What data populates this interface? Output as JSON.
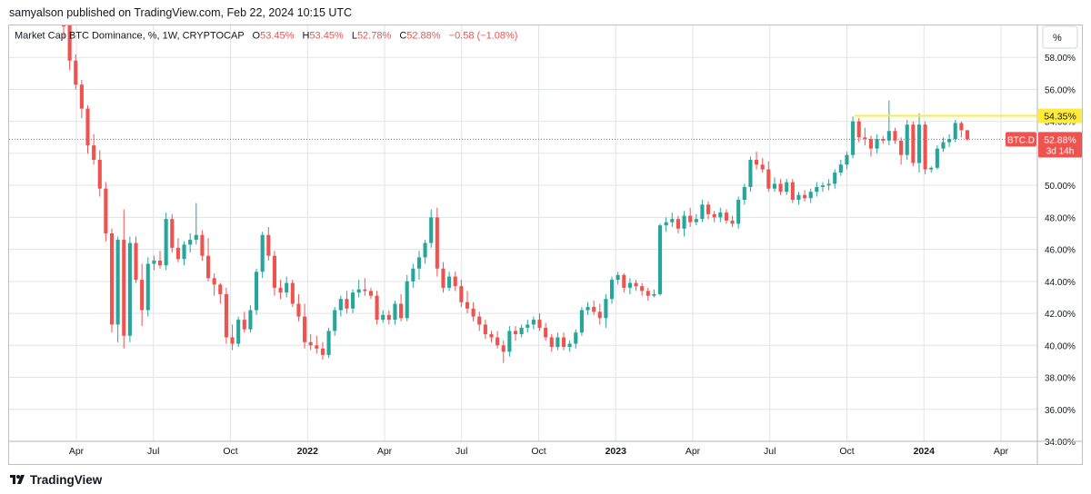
{
  "header": {
    "published": "samyalson published on TradingView.com, Feb 22, 2024 10:15 UTC"
  },
  "legend": {
    "symbol": "Market Cap BTC Dominance, %, 1W, CRYPTOCAP",
    "o_label": "O",
    "o_value": "53.45%",
    "h_label": "H",
    "h_value": "53.45%",
    "l_label": "L",
    "l_value": "52.78%",
    "c_label": "C",
    "c_value": "52.88%",
    "change": "−0.58 (−1.08%)"
  },
  "scale_button": "%",
  "price_tag": {
    "symbol": "BTC.D",
    "value": "52.88%",
    "countdown": "3d 14h"
  },
  "level_tag": "54.35%",
  "footer": {
    "brand": "TradingView"
  },
  "colors": {
    "up": "#26a69a",
    "down": "#ef5350",
    "level": "#ffeb3b",
    "text": "#131722",
    "axis": "#787b86"
  },
  "chart_data": {
    "type": "candlestick",
    "ylim": [
      34,
      60
    ],
    "y_ticks": [
      "58.00%",
      "56.00%",
      "54.00%",
      "52.00%",
      "50.00%",
      "48.00%",
      "46.00%",
      "44.00%",
      "42.00%",
      "40.00%",
      "38.00%",
      "36.00%",
      "34.00%"
    ],
    "x_ticks": [
      "Apr",
      "Jul",
      "Oct",
      "2022",
      "Apr",
      "Jul",
      "Oct",
      "2023",
      "Apr",
      "Jul",
      "Oct",
      "2024",
      "Apr"
    ],
    "x_bold": [
      "2022",
      "2023",
      "2024"
    ],
    "horizontal_level": 54.35,
    "last_price": 52.88,
    "candles": [
      [
        61.5,
        62.0,
        59.2,
        60.2
      ],
      [
        60.2,
        61.0,
        57.2,
        57.8
      ],
      [
        57.8,
        58.2,
        56.0,
        56.3
      ],
      [
        56.3,
        56.6,
        54.2,
        54.8
      ],
      [
        54.8,
        55.0,
        52.0,
        52.5
      ],
      [
        52.5,
        53.2,
        51.3,
        51.6
      ],
      [
        51.6,
        52.2,
        49.3,
        49.8
      ],
      [
        49.8,
        50.2,
        46.5,
        47.0
      ],
      [
        47.0,
        47.3,
        40.8,
        41.3
      ],
      [
        41.3,
        46.8,
        40.2,
        46.6
      ],
      [
        46.6,
        48.5,
        39.8,
        40.6
      ],
      [
        40.6,
        46.8,
        40.2,
        46.4
      ],
      [
        46.4,
        46.8,
        43.9,
        44.1
      ],
      [
        44.1,
        45.1,
        41.2,
        42.2
      ],
      [
        42.2,
        45.5,
        41.8,
        45.1
      ],
      [
        45.1,
        45.6,
        44.7,
        45.3
      ],
      [
        45.3,
        45.9,
        44.8,
        45.0
      ],
      [
        45.0,
        48.3,
        44.7,
        47.9
      ],
      [
        47.9,
        48.2,
        45.8,
        46.1
      ],
      [
        46.1,
        46.7,
        45.2,
        45.4
      ],
      [
        45.4,
        46.5,
        45.0,
        46.3
      ],
      [
        46.3,
        47.0,
        45.8,
        46.6
      ],
      [
        46.6,
        48.9,
        46.3,
        46.9
      ],
      [
        46.9,
        47.2,
        45.3,
        45.6
      ],
      [
        45.6,
        46.7,
        44.0,
        44.2
      ],
      [
        44.2,
        44.5,
        43.1,
        43.8
      ],
      [
        43.8,
        43.9,
        42.6,
        43.2
      ],
      [
        43.2,
        43.6,
        40.1,
        40.5
      ],
      [
        40.5,
        41.3,
        39.7,
        40.1
      ],
      [
        40.1,
        41.8,
        39.9,
        41.6
      ],
      [
        41.6,
        42.1,
        40.8,
        41.0
      ],
      [
        41.0,
        42.5,
        40.8,
        42.2
      ],
      [
        42.2,
        44.8,
        41.9,
        44.6
      ],
      [
        44.6,
        47.1,
        44.2,
        46.9
      ],
      [
        46.9,
        47.4,
        45.3,
        45.6
      ],
      [
        45.6,
        45.9,
        43.1,
        43.6
      ],
      [
        43.6,
        44.1,
        42.9,
        43.3
      ],
      [
        43.3,
        44.3,
        43.0,
        43.9
      ],
      [
        43.9,
        44.1,
        42.4,
        42.6
      ],
      [
        42.6,
        43.2,
        41.5,
        41.8
      ],
      [
        41.8,
        42.6,
        39.8,
        40.2
      ],
      [
        40.2,
        40.7,
        39.7,
        40.0
      ],
      [
        40.0,
        40.6,
        39.5,
        39.8
      ],
      [
        39.8,
        40.2,
        39.1,
        39.4
      ],
      [
        39.4,
        41.1,
        39.2,
        40.9
      ],
      [
        40.9,
        42.4,
        40.6,
        42.2
      ],
      [
        42.2,
        43.1,
        41.8,
        42.9
      ],
      [
        42.9,
        43.4,
        42.0,
        42.3
      ],
      [
        42.3,
        43.5,
        42.0,
        43.3
      ],
      [
        43.3,
        44.1,
        43.0,
        43.5
      ],
      [
        43.5,
        44.2,
        43.1,
        43.4
      ],
      [
        43.4,
        43.6,
        42.9,
        43.1
      ],
      [
        43.1,
        43.4,
        41.3,
        41.6
      ],
      [
        41.6,
        42.2,
        41.4,
        41.9
      ],
      [
        41.9,
        42.2,
        41.3,
        41.6
      ],
      [
        41.6,
        42.8,
        41.3,
        42.6
      ],
      [
        42.6,
        43.2,
        41.5,
        41.7
      ],
      [
        41.7,
        44.4,
        41.5,
        44.0
      ],
      [
        44.0,
        45.1,
        43.6,
        44.8
      ],
      [
        44.8,
        45.9,
        44.1,
        45.5
      ],
      [
        45.5,
        46.6,
        45.1,
        46.4
      ],
      [
        46.4,
        48.5,
        46.1,
        48.0
      ],
      [
        48.0,
        48.6,
        44.3,
        44.8
      ],
      [
        44.8,
        45.2,
        43.3,
        43.6
      ],
      [
        43.6,
        44.6,
        43.4,
        44.3
      ],
      [
        44.3,
        44.6,
        43.4,
        43.7
      ],
      [
        43.7,
        44.1,
        42.4,
        42.7
      ],
      [
        42.7,
        43.4,
        42.0,
        42.3
      ],
      [
        42.3,
        42.7,
        41.5,
        41.8
      ],
      [
        41.8,
        42.1,
        40.9,
        41.3
      ],
      [
        41.3,
        41.6,
        40.4,
        40.7
      ],
      [
        40.7,
        40.9,
        40.2,
        40.5
      ],
      [
        40.5,
        40.9,
        39.8,
        40.0
      ],
      [
        40.0,
        40.3,
        38.9,
        39.6
      ],
      [
        39.6,
        41.2,
        39.3,
        40.9
      ],
      [
        40.9,
        41.2,
        40.3,
        40.7
      ],
      [
        40.7,
        41.3,
        40.5,
        41.1
      ],
      [
        41.1,
        41.6,
        40.8,
        41.3
      ],
      [
        41.3,
        41.8,
        41.0,
        41.6
      ],
      [
        41.6,
        42.0,
        40.9,
        41.1
      ],
      [
        41.1,
        41.4,
        40.3,
        40.5
      ],
      [
        40.5,
        40.7,
        39.6,
        39.9
      ],
      [
        39.9,
        40.8,
        39.7,
        40.5
      ],
      [
        40.5,
        40.8,
        39.7,
        39.9
      ],
      [
        39.9,
        40.3,
        39.6,
        40.1
      ],
      [
        40.1,
        41.0,
        39.8,
        40.8
      ],
      [
        40.8,
        42.4,
        40.6,
        42.2
      ],
      [
        42.2,
        42.7,
        41.9,
        42.4
      ],
      [
        42.4,
        42.8,
        41.9,
        42.1
      ],
      [
        42.1,
        42.6,
        41.3,
        41.7
      ],
      [
        41.7,
        43.2,
        41.1,
        42.9
      ],
      [
        42.9,
        44.3,
        42.6,
        44.1
      ],
      [
        44.1,
        44.6,
        43.8,
        44.4
      ],
      [
        44.4,
        44.5,
        43.3,
        43.6
      ],
      [
        43.6,
        44.2,
        43.2,
        43.9
      ],
      [
        43.9,
        44.1,
        43.4,
        43.7
      ],
      [
        43.7,
        43.9,
        43.1,
        43.4
      ],
      [
        43.4,
        43.6,
        42.8,
        43.1
      ],
      [
        43.1,
        43.5,
        43.0,
        43.2
      ],
      [
        43.2,
        47.6,
        43.1,
        47.5
      ],
      [
        47.5,
        48.0,
        47.1,
        47.7
      ],
      [
        47.7,
        48.3,
        47.4,
        47.9
      ],
      [
        47.9,
        48.1,
        47.0,
        47.3
      ],
      [
        47.3,
        48.4,
        46.8,
        48.1
      ],
      [
        48.1,
        48.6,
        47.4,
        47.7
      ],
      [
        47.7,
        48.2,
        47.5,
        47.9
      ],
      [
        47.9,
        49.1,
        47.7,
        48.8
      ],
      [
        48.8,
        49.0,
        47.9,
        48.2
      ],
      [
        48.2,
        48.4,
        47.7,
        48.0
      ],
      [
        48.0,
        48.6,
        47.7,
        48.3
      ],
      [
        48.3,
        48.5,
        47.6,
        47.8
      ],
      [
        47.8,
        48.1,
        47.4,
        47.6
      ],
      [
        47.6,
        49.3,
        47.3,
        49.1
      ],
      [
        49.1,
        50.1,
        48.8,
        49.9
      ],
      [
        49.9,
        51.8,
        49.6,
        51.6
      ],
      [
        51.6,
        52.1,
        51.0,
        51.3
      ],
      [
        51.3,
        51.7,
        50.8,
        51.0
      ],
      [
        51.0,
        51.5,
        49.6,
        49.8
      ],
      [
        49.8,
        50.5,
        49.6,
        50.1
      ],
      [
        50.1,
        50.4,
        49.4,
        49.6
      ],
      [
        49.6,
        50.4,
        49.4,
        50.2
      ],
      [
        50.2,
        50.4,
        48.9,
        49.1
      ],
      [
        49.1,
        49.6,
        48.8,
        49.4
      ],
      [
        49.4,
        49.7,
        49.0,
        49.2
      ],
      [
        49.2,
        49.8,
        48.9,
        49.6
      ],
      [
        49.6,
        50.2,
        49.3,
        49.9
      ],
      [
        49.9,
        50.2,
        49.6,
        50.0
      ],
      [
        50.0,
        50.4,
        49.7,
        50.1
      ],
      [
        50.1,
        51.0,
        49.8,
        50.8
      ],
      [
        50.8,
        51.6,
        50.6,
        51.3
      ],
      [
        51.3,
        52.1,
        51.0,
        51.9
      ],
      [
        51.9,
        54.3,
        51.7,
        54.0
      ],
      [
        54.0,
        54.2,
        52.7,
        53.0
      ],
      [
        53.0,
        53.6,
        52.5,
        52.9
      ],
      [
        52.9,
        53.1,
        51.8,
        52.3
      ],
      [
        52.3,
        53.2,
        52.0,
        52.9
      ],
      [
        52.9,
        53.1,
        52.6,
        52.8
      ],
      [
        52.8,
        55.3,
        52.5,
        53.4
      ],
      [
        53.4,
        53.6,
        52.6,
        52.8
      ],
      [
        52.8,
        53.0,
        51.3,
        51.9
      ],
      [
        51.9,
        54.1,
        51.6,
        53.8
      ],
      [
        53.8,
        54.0,
        51.2,
        51.4
      ],
      [
        51.4,
        54.5,
        50.8,
        53.8
      ],
      [
        53.8,
        54.0,
        50.7,
        51.0
      ],
      [
        51.0,
        51.2,
        50.8,
        51.1
      ],
      [
        51.1,
        52.5,
        51.0,
        52.3
      ],
      [
        52.3,
        53.0,
        52.1,
        52.7
      ],
      [
        52.7,
        53.2,
        52.4,
        52.9
      ],
      [
        52.9,
        54.1,
        52.7,
        53.9
      ],
      [
        53.9,
        54.0,
        53.0,
        53.45
      ],
      [
        53.45,
        53.45,
        52.78,
        52.88
      ]
    ]
  }
}
